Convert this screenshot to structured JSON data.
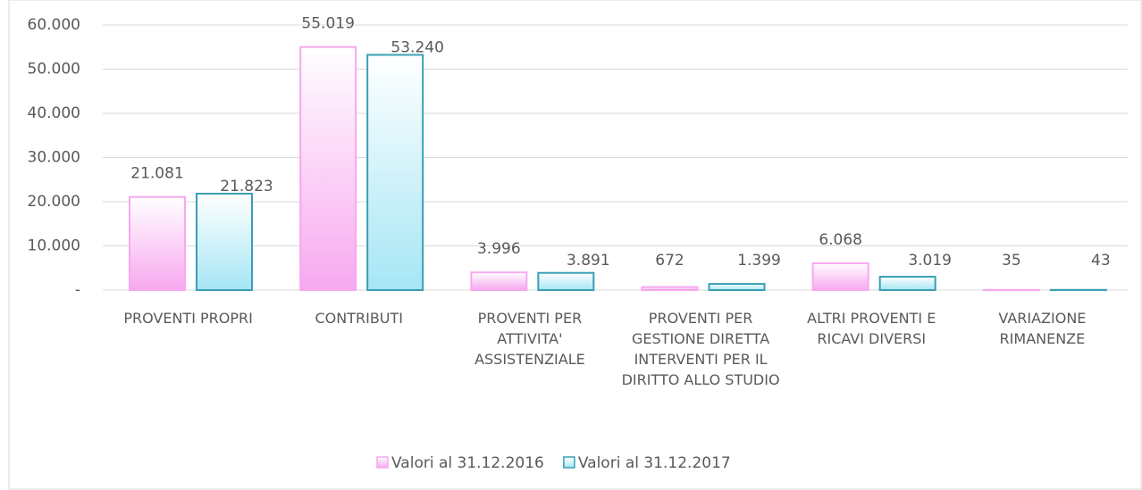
{
  "chart_data": {
    "type": "bar",
    "categories": [
      "PROVENTI PROPRI",
      "CONTRIBUTI",
      "PROVENTI PER ATTIVITA' ASSISTENZIALE",
      "PROVENTI PER GESTIONE DIRETTA INTERVENTI PER IL DIRITTO ALLO STUDIO",
      "ALTRI PROVENTI E RICAVI DIVERSI",
      "VARIAZIONE RIMANENZE"
    ],
    "series": [
      {
        "name": "Valori al 31.12.2016",
        "color": "#f7a8ef",
        "values": [
          21081,
          55019,
          3996,
          672,
          6068,
          35
        ],
        "value_labels": [
          "21.081",
          "55.019",
          "3.996",
          "672",
          "6.068",
          "35"
        ]
      },
      {
        "name": "Valori al 31.12.2017",
        "color": "#3a9fb5",
        "values": [
          21823,
          53240,
          3891,
          1399,
          3019,
          43
        ],
        "value_labels": [
          "21.823",
          "53.240",
          "3.891",
          "1.399",
          "3.019",
          "43"
        ]
      }
    ],
    "ylim": [
      0,
      60000
    ],
    "yticks": [
      {
        "value": 0,
        "label": "-"
      },
      {
        "value": 10000,
        "label": "10.000"
      },
      {
        "value": 20000,
        "label": "20.000"
      },
      {
        "value": 30000,
        "label": "30.000"
      },
      {
        "value": 40000,
        "label": "40.000"
      },
      {
        "value": 50000,
        "label": "50.000"
      },
      {
        "value": 60000,
        "label": "60.000"
      }
    ],
    "grid": true,
    "legend": "bottom"
  }
}
